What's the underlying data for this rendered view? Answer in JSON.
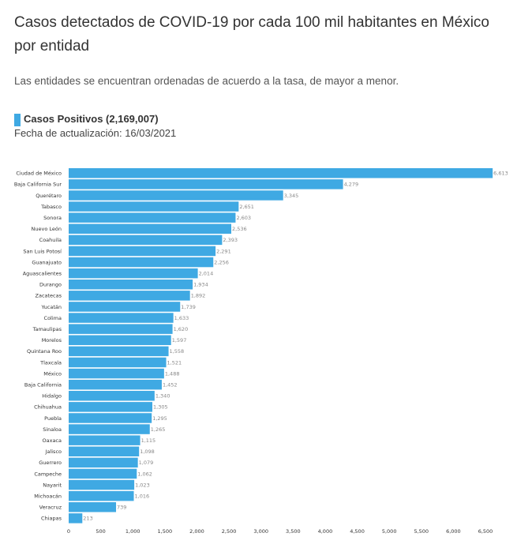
{
  "header": {
    "title": "Casos detectados de COVID-19 por cada 100 mil habitantes en México por entidad",
    "subtitle": "Las entidades se encuentran ordenadas de acuerdo a la tasa, de mayor a menor.",
    "update": "Fecha de actualización: 16/03/2021"
  },
  "colors": {
    "bar": "#3fa9e3"
  },
  "chart_data": {
    "type": "bar",
    "orientation": "horizontal",
    "title": "Casos detectados de COVID-19 por cada 100 mil habitantes en México por entidad",
    "xlabel": "",
    "ylabel": "",
    "xlim": [
      0,
      6500
    ],
    "ticks": [
      0,
      500,
      1000,
      1500,
      2000,
      2500,
      3000,
      3500,
      4000,
      4500,
      5000,
      5500,
      6000,
      6500
    ],
    "tick_labels": [
      "0",
      "500",
      "1,000",
      "1,500",
      "2,000",
      "2,500",
      "3,000",
      "3,500",
      "4,000",
      "4,500",
      "5,000",
      "5,500",
      "6,000",
      "6,500"
    ],
    "grid": false,
    "legend": "top-left",
    "categories": [
      "Ciudad de México",
      "Baja California Sur",
      "Querétaro",
      "Tabasco",
      "Sonora",
      "Nuevo León",
      "Coahuila",
      "San Luis Potosí",
      "Guanajuato",
      "Aguascalientes",
      "Durango",
      "Zacatecas",
      "Yucatán",
      "Colima",
      "Tamaulipas",
      "Morelos",
      "Quintana Roo",
      "Tlaxcala",
      "México",
      "Baja California",
      "Hidalgo",
      "Chihuahua",
      "Puebla",
      "Sinaloa",
      "Oaxaca",
      "Jalisco",
      "Guerrero",
      "Campeche",
      "Nayarit",
      "Michoacán",
      "Veracruz",
      "Chiapas"
    ],
    "value_labels": [
      "6,613",
      "4,279",
      "3,345",
      "2,651",
      "2,603",
      "2,536",
      "2,393",
      "2,291",
      "2,256",
      "2,014",
      "1,934",
      "1,892",
      "1,739",
      "1,633",
      "1,620",
      "1,597",
      "1,558",
      "1,521",
      "1,488",
      "1,452",
      "1,340",
      "1,305",
      "1,295",
      "1,265",
      "1,115",
      "1,098",
      "1,079",
      "1,062",
      "1,023",
      "1,016",
      "739",
      "213"
    ],
    "series": [
      {
        "name": "Casos Positivos (2,169,007)",
        "values": [
          6613,
          4279,
          3345,
          2651,
          2603,
          2536,
          2393,
          2291,
          2256,
          2014,
          1934,
          1892,
          1739,
          1633,
          1620,
          1597,
          1558,
          1521,
          1488,
          1452,
          1340,
          1305,
          1295,
          1265,
          1115,
          1098,
          1079,
          1062,
          1023,
          1016,
          739,
          213
        ]
      }
    ]
  }
}
